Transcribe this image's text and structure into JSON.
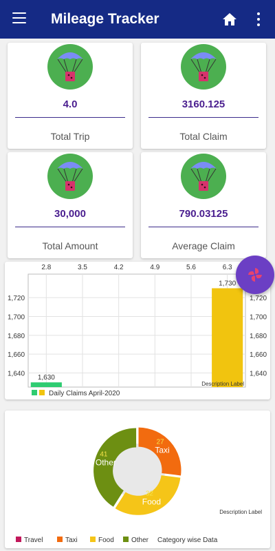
{
  "appbar": {
    "title": "Mileage Tracker",
    "menu_icon": "menu-icon",
    "home_icon": "home-icon",
    "more_icon": "more-vert-icon"
  },
  "stats": [
    {
      "value": "4.0",
      "label": "Total Trip",
      "icon": "parachute-icon"
    },
    {
      "value": "3160.125",
      "label": "Total Claim",
      "icon": "parachute-icon"
    },
    {
      "value": "30,000",
      "label": "Total Amount",
      "icon": "parachute-icon"
    },
    {
      "value": "790.03125",
      "label": "Average Claim",
      "icon": "parachute-icon"
    }
  ],
  "colors": {
    "appbar": "#152a85",
    "stat_value": "#4a1e8f",
    "badge": "#4caf50",
    "fab": "#6b3fc4"
  },
  "fab_icon": "pinwheel-icon",
  "chart_data": [
    {
      "type": "bar",
      "x_ticks": [
        "2.8",
        "3.5",
        "4.2",
        "4.9",
        "5.6",
        "6.3"
      ],
      "y_ticks": [
        "1,640",
        "1,660",
        "1,680",
        "1,700",
        "1,720"
      ],
      "xlim": [
        2.45,
        6.65
      ],
      "ylim": [
        1625,
        1745
      ],
      "bars": [
        {
          "x": 2.8,
          "value": 1630,
          "label": "1,630",
          "color": "#2ecc71"
        },
        {
          "x": 6.3,
          "value": 1730,
          "label": "1,730",
          "color": "#f1c40f"
        }
      ],
      "legend": {
        "entries": [
          {
            "label": "",
            "color": "#2ecc71"
          },
          {
            "label": "",
            "color": "#f1c40f"
          }
        ],
        "caption": "Daily Claims April-2020",
        "placement": "bottom-left"
      },
      "description": "Description Label",
      "grid": true
    },
    {
      "type": "pie",
      "slices": [
        {
          "label": "Travel",
          "value": 0,
          "color": "#c2185b"
        },
        {
          "label": "Taxi",
          "value": 27,
          "color": "#f26b0f"
        },
        {
          "label": "Food",
          "value": 32,
          "color": "#f5c518"
        },
        {
          "label": "Other",
          "value": 41,
          "color": "#6d8f12"
        }
      ],
      "legend": {
        "caption": "Category wise Data",
        "placement": "bottom-left"
      },
      "description": "Description Label",
      "donut": true
    }
  ]
}
